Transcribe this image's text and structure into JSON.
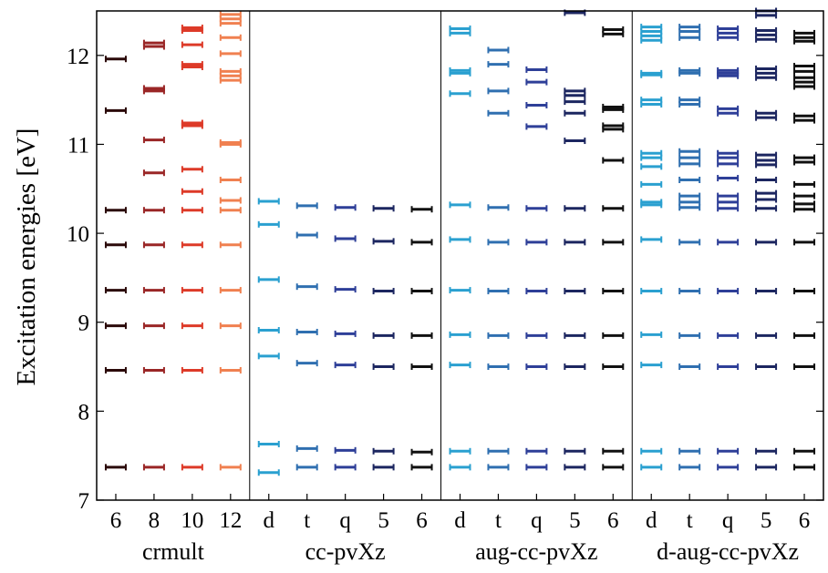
{
  "chart_data": {
    "type": "scatter",
    "ylabel": "Excitation energies [eV]",
    "xlabel": "",
    "ylim": [
      7,
      12.5
    ],
    "yticks": [
      7,
      8,
      9,
      10,
      11,
      12
    ],
    "grid": false,
    "groups": [
      {
        "name": "crmult",
        "columns": [
          {
            "label": "6",
            "color": "#2b0a0a",
            "values": [
              7.37,
              8.46,
              8.96,
              9.36,
              9.87,
              10.26,
              11.38,
              11.96
            ]
          },
          {
            "label": "8",
            "color": "#9a2626",
            "values": [
              7.37,
              8.46,
              8.96,
              9.36,
              9.87,
              10.26,
              10.68,
              11.05,
              11.6,
              11.63,
              12.1,
              12.14
            ]
          },
          {
            "label": "10",
            "color": "#dd3a28",
            "values": [
              7.37,
              8.46,
              8.96,
              9.36,
              9.87,
              10.26,
              10.47,
              10.72,
              11.21,
              11.24,
              11.87,
              11.9,
              12.12,
              12.28,
              12.31
            ]
          },
          {
            "label": "12",
            "color": "#f08050",
            "values": [
              7.37,
              8.46,
              8.96,
              9.36,
              9.87,
              10.26,
              10.37,
              10.6,
              11.0,
              11.02,
              11.72,
              11.77,
              11.82,
              12.02,
              12.2,
              12.36,
              12.41,
              12.46
            ]
          }
        ]
      },
      {
        "name": "cc-pvXz",
        "columns": [
          {
            "label": "d",
            "color": "#2aa0d0",
            "values": [
              7.31,
              7.63,
              8.62,
              8.91,
              9.48,
              10.1,
              10.36
            ]
          },
          {
            "label": "t",
            "color": "#2f6fb0",
            "values": [
              7.37,
              7.58,
              8.54,
              8.89,
              9.4,
              9.98,
              10.31
            ]
          },
          {
            "label": "q",
            "color": "#2e3f98",
            "values": [
              7.37,
              7.56,
              8.52,
              8.87,
              9.37,
              9.94,
              10.29
            ]
          },
          {
            "label": "5",
            "color": "#1c2660",
            "values": [
              7.37,
              7.55,
              8.5,
              8.85,
              9.35,
              9.91,
              10.28
            ]
          },
          {
            "label": "6",
            "color": "#111111",
            "values": [
              7.37,
              7.54,
              8.5,
              8.85,
              9.35,
              9.9,
              10.27
            ]
          }
        ]
      },
      {
        "name": "aug-cc-pvXz",
        "columns": [
          {
            "label": "d",
            "color": "#2aa0d0",
            "values": [
              7.37,
              7.55,
              8.52,
              8.86,
              9.36,
              9.93,
              10.32,
              11.57,
              11.8,
              11.83,
              12.25,
              12.3
            ]
          },
          {
            "label": "t",
            "color": "#2f6fb0",
            "values": [
              7.37,
              7.55,
              8.5,
              8.85,
              9.35,
              9.9,
              10.29,
              11.35,
              11.6,
              11.9,
              12.06
            ]
          },
          {
            "label": "q",
            "color": "#2e3f98",
            "values": [
              7.37,
              7.55,
              8.5,
              8.85,
              9.35,
              9.9,
              10.28,
              11.2,
              11.44,
              11.7,
              11.84
            ]
          },
          {
            "label": "5",
            "color": "#1c2660",
            "values": [
              7.37,
              7.55,
              8.5,
              8.85,
              9.35,
              9.9,
              10.28,
              11.04,
              11.35,
              11.48,
              11.55,
              11.6,
              12.48
            ]
          },
          {
            "label": "6",
            "color": "#111111",
            "values": [
              7.37,
              7.55,
              8.5,
              8.85,
              9.35,
              9.9,
              10.28,
              10.82,
              11.17,
              11.21,
              11.39,
              11.42,
              12.24,
              12.29
            ]
          }
        ]
      },
      {
        "name": "d-aug-cc-pvXz",
        "columns": [
          {
            "label": "d",
            "color": "#2aa0d0",
            "values": [
              7.37,
              7.55,
              8.52,
              8.86,
              9.35,
              9.93,
              10.32,
              10.35,
              10.55,
              10.75,
              10.85,
              10.9,
              11.45,
              11.5,
              11.78,
              11.8,
              12.17,
              12.22,
              12.27,
              12.32
            ]
          },
          {
            "label": "t",
            "color": "#2f6fb0",
            "values": [
              7.37,
              7.55,
              8.5,
              8.85,
              9.35,
              9.9,
              10.29,
              10.35,
              10.42,
              10.6,
              10.78,
              10.85,
              10.92,
              11.45,
              11.5,
              11.8,
              11.83,
              12.2,
              12.27,
              12.32
            ]
          },
          {
            "label": "q",
            "color": "#2e3f98",
            "values": [
              7.37,
              7.55,
              8.5,
              8.85,
              9.35,
              9.9,
              10.28,
              10.35,
              10.42,
              10.62,
              10.78,
              10.85,
              10.9,
              11.35,
              11.4,
              11.77,
              11.8,
              11.83,
              12.2,
              12.25,
              12.3
            ]
          },
          {
            "label": "5",
            "color": "#1c2660",
            "values": [
              7.37,
              7.55,
              8.5,
              8.85,
              9.35,
              9.9,
              10.28,
              10.38,
              10.45,
              10.6,
              10.77,
              10.82,
              10.88,
              11.3,
              11.35,
              11.75,
              11.8,
              11.85,
              12.18,
              12.23,
              12.28,
              12.45,
              12.5
            ]
          },
          {
            "label": "6",
            "color": "#111111",
            "values": [
              7.37,
              7.55,
              8.5,
              8.85,
              9.35,
              9.9,
              10.27,
              10.33,
              10.42,
              10.55,
              10.8,
              10.85,
              11.27,
              11.32,
              11.65,
              11.7,
              11.75,
              11.82,
              11.88,
              12.16,
              12.2,
              12.25
            ]
          }
        ]
      }
    ]
  }
}
